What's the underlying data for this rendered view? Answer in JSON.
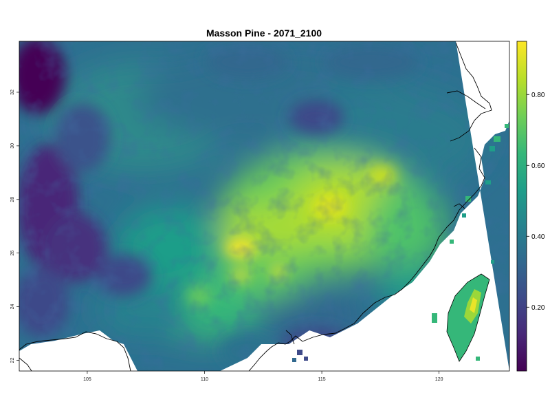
{
  "map": {
    "title": "Masson Pine - 2071_2100",
    "x_ticks": [
      "105",
      "110",
      "115",
      "120"
    ],
    "y_ticks": [
      "22",
      "24",
      "26",
      "28",
      "30",
      "32"
    ],
    "lon_range": [
      102.1,
      123.0
    ],
    "lat_range": [
      21.6,
      33.9
    ],
    "x_tick_values": [
      105,
      110,
      115,
      120
    ],
    "y_tick_values": [
      22,
      24,
      26,
      28,
      30,
      32
    ]
  },
  "legend": {
    "ticks": [
      "0.20",
      "0.40",
      "0.60",
      "0.80"
    ],
    "tick_values": [
      0.2,
      0.4,
      0.6,
      0.8
    ],
    "range": [
      0.02,
      0.95
    ],
    "colorscale": "viridis"
  },
  "colors": {
    "viridis": [
      "#440154",
      "#482878",
      "#3e4a89",
      "#31688e",
      "#26828e",
      "#1f9e89",
      "#35b779",
      "#6ece58",
      "#b5de2b",
      "#fde725"
    ],
    "coastline": "#000000",
    "background": "#ffffff"
  }
}
